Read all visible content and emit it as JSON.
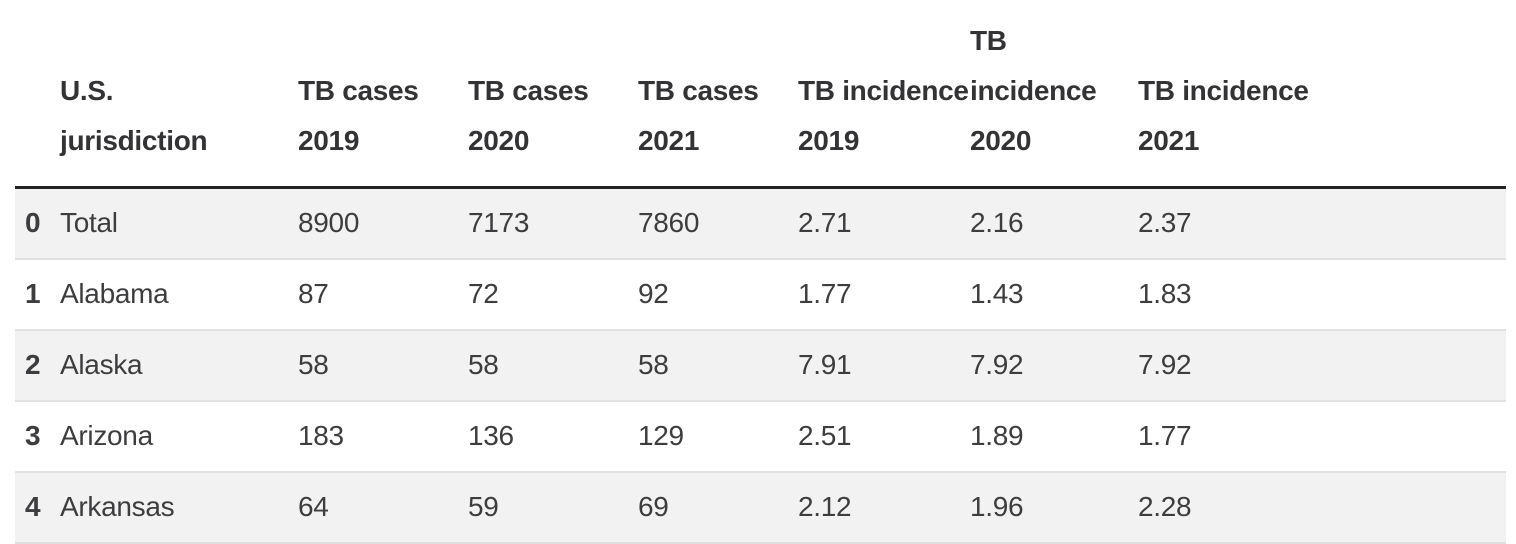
{
  "table": {
    "index_header": "",
    "columns": [
      "U.S. jurisdiction",
      "TB cases 2019",
      "TB cases 2020",
      "TB cases 2021",
      "TB incidence 2019",
      "TB incidence 2020",
      "TB incidence 2021"
    ],
    "rows": [
      {
        "index": "0",
        "cells": [
          "Total",
          "8900",
          "7173",
          "7860",
          "2.71",
          "2.16",
          "2.37"
        ]
      },
      {
        "index": "1",
        "cells": [
          "Alabama",
          "87",
          "72",
          "92",
          "1.77",
          "1.43",
          "1.83"
        ]
      },
      {
        "index": "2",
        "cells": [
          "Alaska",
          "58",
          "58",
          "58",
          "7.91",
          "7.92",
          "7.92"
        ]
      },
      {
        "index": "3",
        "cells": [
          "Arizona",
          "183",
          "136",
          "129",
          "2.51",
          "1.89",
          "1.77"
        ]
      },
      {
        "index": "4",
        "cells": [
          "Arkansas",
          "64",
          "59",
          "69",
          "2.12",
          "1.96",
          "2.28"
        ]
      }
    ]
  },
  "chart_data": {
    "type": "table",
    "title": "",
    "columns": [
      "U.S. jurisdiction",
      "TB cases 2019",
      "TB cases 2020",
      "TB cases 2021",
      "TB incidence 2019",
      "TB incidence 2020",
      "TB incidence 2021"
    ],
    "index": [
      0,
      1,
      2,
      3,
      4
    ],
    "rows": [
      [
        "Total",
        8900,
        7173,
        7860,
        2.71,
        2.16,
        2.37
      ],
      [
        "Alabama",
        87,
        72,
        92,
        1.77,
        1.43,
        1.83
      ],
      [
        "Alaska",
        58,
        58,
        58,
        7.91,
        7.92,
        7.92
      ],
      [
        "Arizona",
        183,
        136,
        129,
        2.51,
        1.89,
        1.77
      ],
      [
        "Arkansas",
        64,
        59,
        69,
        2.12,
        1.96,
        2.28
      ]
    ],
    "layout_hints": {
      "striped_rows": "even index rows shaded",
      "header_rule": "dark 3px under header",
      "index_column_bold": true
    }
  },
  "colors": {
    "text": "#3d3d3f",
    "header_text": "#333335",
    "stripe_row_bg": "#f2f2f2",
    "row_border": "#e1e1e2",
    "header_border": "#232326",
    "page_bg": "#ffffff"
  }
}
